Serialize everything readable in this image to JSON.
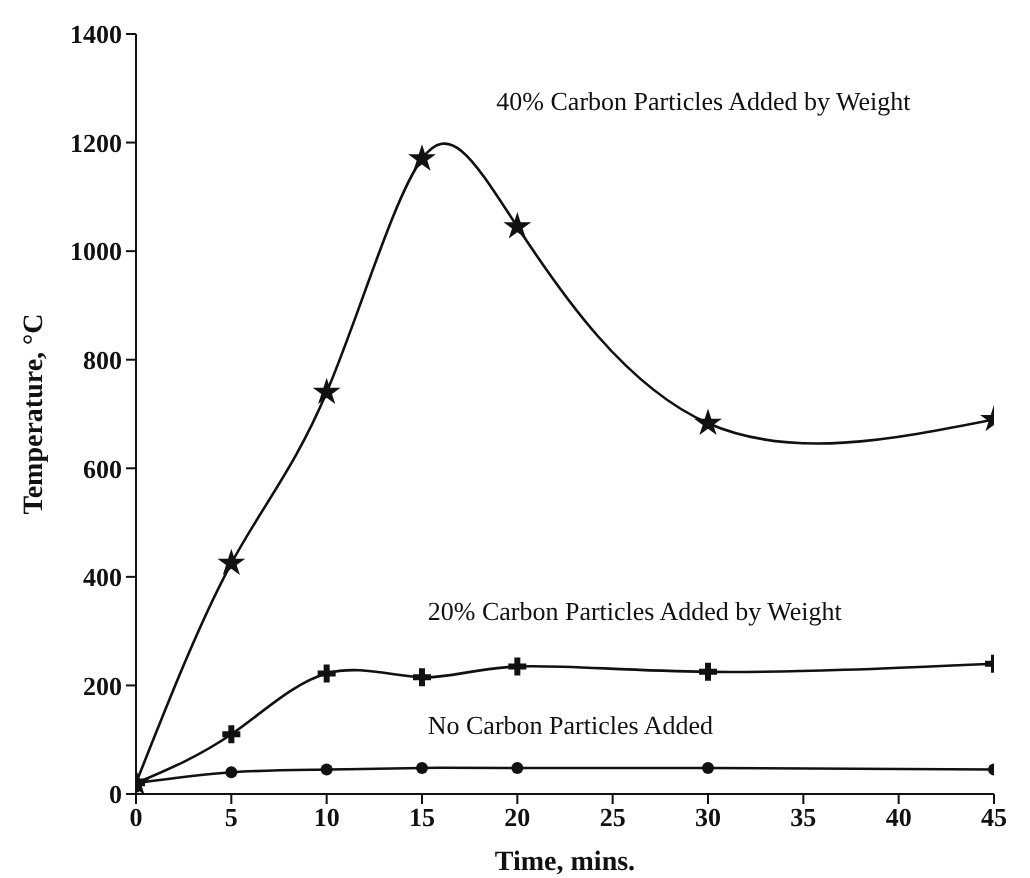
{
  "chart_data": {
    "type": "line",
    "xlabel": "Time, mins.",
    "ylabel": "Temperature, °C",
    "x": [
      0,
      5,
      10,
      15,
      20,
      30,
      45
    ],
    "xlim": [
      0,
      45
    ],
    "xticks": [
      0,
      5,
      10,
      15,
      20,
      25,
      30,
      35,
      40,
      45
    ],
    "ylim": [
      0,
      1400
    ],
    "yticks": [
      0,
      200,
      400,
      600,
      800,
      1000,
      1200,
      1400
    ],
    "grid": false,
    "legend": false,
    "line_style": "solid",
    "series": [
      {
        "name": "40% Carbon Particles Added by Weight",
        "color": "#111111",
        "marker": "star",
        "values": [
          20,
          425,
          740,
          1170,
          1045,
          683,
          690
        ]
      },
      {
        "name": "20% Carbon Particles Added by Weight",
        "color": "#111111",
        "marker": "cross",
        "values": [
          20,
          110,
          222,
          215,
          235,
          225,
          240
        ]
      },
      {
        "name": "No Carbon Particles Added",
        "color": "#111111",
        "marker": "circle",
        "values": [
          20,
          40,
          45,
          48,
          48,
          48,
          45
        ]
      }
    ]
  }
}
